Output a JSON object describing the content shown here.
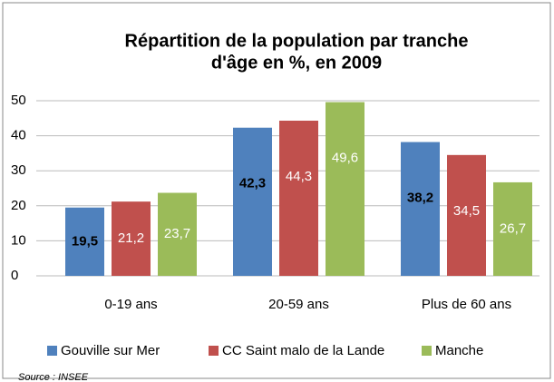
{
  "chart_data": {
    "type": "bar",
    "title": [
      "Répartition de la population par tranche",
      "d'âge en %,  en 2009"
    ],
    "categories": [
      "0-19 ans",
      "20-59 ans",
      "Plus de 60 ans"
    ],
    "series": [
      {
        "name": "Gouville sur Mer",
        "color": "#4f81bd",
        "values": [
          19.5,
          42.3,
          38.2
        ],
        "value_labels": [
          "19,5",
          "42,3",
          "38,2"
        ]
      },
      {
        "name": "CC Saint malo de la Lande",
        "color": "#c0504d",
        "values": [
          21.2,
          44.3,
          34.5
        ],
        "value_labels": [
          "21,2",
          "44,3",
          "34,5"
        ]
      },
      {
        "name": "Manche",
        "color": "#9bbb59",
        "values": [
          23.7,
          49.6,
          26.7
        ],
        "value_labels": [
          "23,7",
          "49,6",
          "26,7"
        ]
      }
    ],
    "ylim": [
      0,
      50
    ],
    "yticks": [
      0,
      10,
      20,
      30,
      40,
      50
    ],
    "grid": true,
    "legend": "bottom",
    "source": "Source : INSEE"
  }
}
